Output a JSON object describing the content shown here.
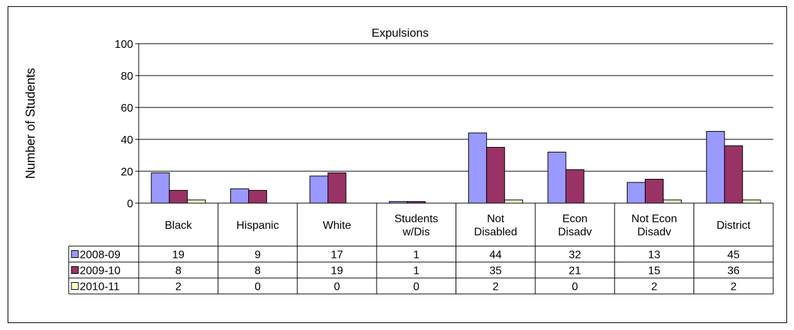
{
  "chart_data": {
    "type": "bar",
    "title": "Expulsions",
    "xlabel": "",
    "ylabel": "Number of Students",
    "ylim": [
      0,
      100
    ],
    "yticks": [
      0,
      20,
      40,
      60,
      80,
      100
    ],
    "grid": true,
    "legend": "data-table",
    "categories": [
      [
        "Black"
      ],
      [
        "Hispanic"
      ],
      [
        "White"
      ],
      [
        "Students",
        "w/Dis"
      ],
      [
        "Not",
        "Disabled"
      ],
      [
        "Econ",
        "Disadv"
      ],
      [
        "Not Econ",
        "Disadv"
      ],
      [
        "District"
      ]
    ],
    "series": [
      {
        "name": "2008-09",
        "color": "#9999ff",
        "values": [
          19,
          9,
          17,
          1,
          44,
          32,
          13,
          45
        ]
      },
      {
        "name": "2009-10",
        "color": "#993366",
        "values": [
          8,
          8,
          19,
          1,
          35,
          21,
          15,
          36
        ]
      },
      {
        "name": "2010-11",
        "color": "#ffffcc",
        "values": [
          2,
          0,
          0,
          0,
          2,
          0,
          2,
          2
        ]
      }
    ]
  }
}
